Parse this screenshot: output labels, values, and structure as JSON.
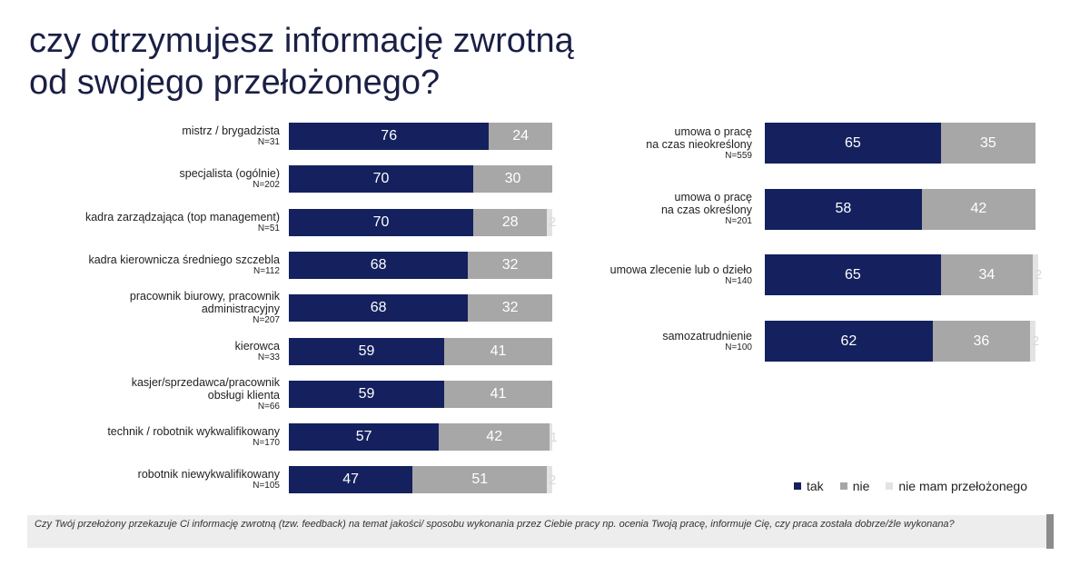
{
  "title": {
    "line1": "czy otrzymujesz informację zwrotną",
    "line2": "od swojego przełożonego?"
  },
  "legend": [
    {
      "label": "tak",
      "color": "#14215e"
    },
    {
      "label": "nie",
      "color": "#a7a7a7"
    },
    {
      "label": "nie mam przełożonego",
      "color": "#e3e3e3"
    }
  ],
  "footnote": "Czy Twój przełożony przekazuje Ci informację zwrotną (tzw. feedback) na temat jakości/ sposobu wykonania przez Ciebie pracy np. ocenia Twoją pracę, informuje Cię, czy praca została dobrze/źle wykonana?",
  "chart_data": [
    {
      "type": "bar",
      "orientation": "horizontal",
      "stacked": true,
      "xlim": [
        0,
        100
      ],
      "categories": [
        {
          "lines": [
            "mistrz / brygadzista"
          ],
          "n": "N=31"
        },
        {
          "lines": [
            "specjalista (ogólnie)"
          ],
          "n": "N=202"
        },
        {
          "lines": [
            "kadra zarządzająca (top management)"
          ],
          "n": "N=51"
        },
        {
          "lines": [
            "kadra kierownicza średniego szczebla"
          ],
          "n": "N=112"
        },
        {
          "lines": [
            "pracownik biurowy, pracownik",
            "administracyjny"
          ],
          "n": "N=207"
        },
        {
          "lines": [
            "kierowca"
          ],
          "n": "N=33"
        },
        {
          "lines": [
            "kasjer/sprzedawca/pracownik",
            "obsługi klienta"
          ],
          "n": "N=66"
        },
        {
          "lines": [
            "technik / robotnik wykwalifikowany"
          ],
          "n": "N=170"
        },
        {
          "lines": [
            "robotnik niewykwalifikowany"
          ],
          "n": "N=105"
        }
      ],
      "series": [
        {
          "name": "tak",
          "values": [
            76,
            70,
            70,
            68,
            68,
            59,
            59,
            57,
            47
          ]
        },
        {
          "name": "nie",
          "values": [
            24,
            30,
            28,
            32,
            32,
            41,
            41,
            42,
            51
          ]
        },
        {
          "name": "nie mam przełożonego",
          "values": [
            0,
            0,
            2,
            0,
            0,
            0,
            0,
            1,
            2
          ]
        }
      ]
    },
    {
      "type": "bar",
      "orientation": "horizontal",
      "stacked": true,
      "xlim": [
        0,
        100
      ],
      "categories": [
        {
          "lines": [
            "umowa o pracę",
            "na czas nieokreślony"
          ],
          "n": "N=559"
        },
        {
          "lines": [
            "umowa o pracę",
            "na czas określony"
          ],
          "n": "N=201"
        },
        {
          "lines": [
            "umowa zlecenie lub o dzieło"
          ],
          "n": "N=140"
        },
        {
          "lines": [
            "samozatrudnienie"
          ],
          "n": "N=100"
        }
      ],
      "series": [
        {
          "name": "tak",
          "values": [
            65,
            58,
            65,
            62
          ]
        },
        {
          "name": "nie",
          "values": [
            35,
            42,
            34,
            36
          ]
        },
        {
          "name": "nie mam przełożonego",
          "values": [
            0,
            0,
            2,
            2
          ]
        }
      ]
    }
  ]
}
